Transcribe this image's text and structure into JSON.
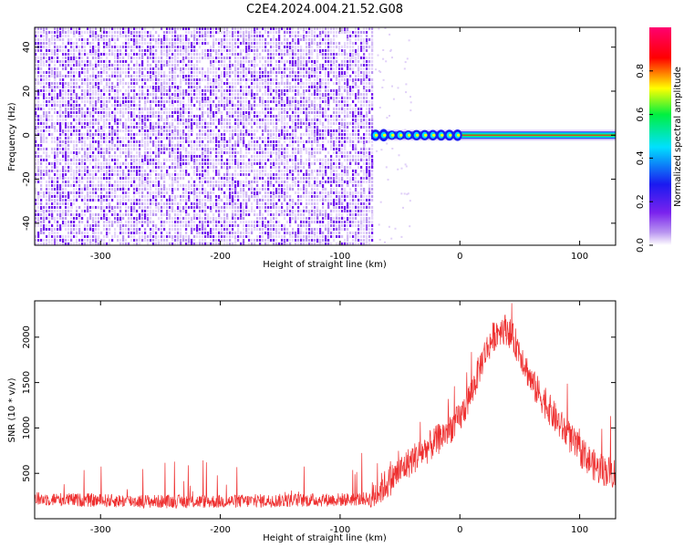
{
  "title": "C2E4.2024.004.21.52.G08",
  "chart_data": [
    {
      "type": "heatmap",
      "xlabel": "Height of straight line (km)",
      "ylabel": "Frequency (Hz)",
      "xlim": [
        -355,
        130
      ],
      "ylim": [
        -50,
        49
      ],
      "xticks": [
        -300,
        -200,
        -100,
        0,
        100
      ],
      "yticks": [
        -40,
        -20,
        0,
        20,
        40
      ],
      "grid": false,
      "colorbar": {
        "label": "Normalized spectral amplitude",
        "range": [
          0.0,
          1.0
        ],
        "ticks": [
          0.0,
          0.2,
          0.4,
          0.6,
          0.8
        ],
        "colormap": [
          "#ffffff",
          "#b894f0",
          "#7a22ee",
          "#1a1af0",
          "#00e0ff",
          "#00f040",
          "#ffff00",
          "#ff0000",
          "#ff0070"
        ]
      },
      "features": [
        {
          "description": "broadband noise (amplitude ~0.1-0.3)",
          "x_range": [
            -355,
            -72
          ],
          "freq_range": [
            -50,
            49
          ]
        },
        {
          "description": "narrow signal line at 0 Hz (amplitude ~0.9-1.0)",
          "x_range": [
            -72,
            130
          ],
          "frequency": 0
        }
      ]
    },
    {
      "type": "line",
      "xlabel": "Height of straight line (km)",
      "ylabel": "SNR (10 * v/v)",
      "xlim": [
        -355,
        130
      ],
      "ylim": [
        0,
        2400
      ],
      "xticks": [
        -300,
        -200,
        -100,
        0,
        100
      ],
      "yticks": [
        500,
        1000,
        1500,
        2000
      ],
      "grid": false,
      "color": "#ee3030",
      "series": [
        {
          "x": [
            -355,
            -300,
            -250,
            -200,
            -150,
            -100,
            -75,
            -60,
            -40,
            -20,
            0,
            10,
            20,
            30,
            35,
            40,
            50,
            60,
            80,
            100,
            115,
            130
          ],
          "values": [
            220,
            200,
            190,
            190,
            200,
            210,
            220,
            400,
            650,
            850,
            1100,
            1400,
            1800,
            2050,
            2100,
            2080,
            1850,
            1500,
            1100,
            750,
            550,
            500
          ]
        }
      ]
    }
  ]
}
